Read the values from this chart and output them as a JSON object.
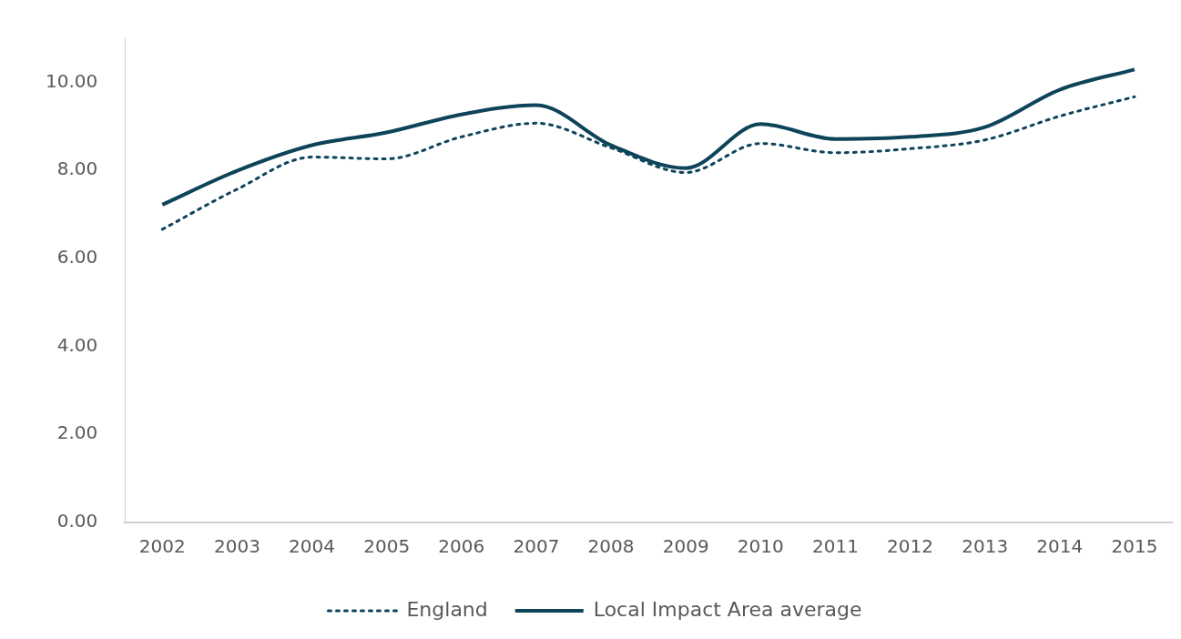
{
  "chart_data": {
    "type": "line",
    "categories": [
      "2002",
      "2003",
      "2004",
      "2005",
      "2006",
      "2007",
      "2008",
      "2009",
      "2010",
      "2011",
      "2012",
      "2013",
      "2014",
      "2015"
    ],
    "series": [
      {
        "name": "England",
        "color": "#0d4459",
        "line_style": "dotted",
        "values": [
          6.66,
          7.57,
          8.3,
          8.26,
          8.76,
          9.07,
          8.51,
          7.95,
          8.61,
          8.4,
          8.49,
          8.69,
          9.23,
          9.67
        ]
      },
      {
        "name": "Local Impact Area average",
        "color": "#0d4459",
        "line_style": "solid",
        "values": [
          7.22,
          7.99,
          8.57,
          8.86,
          9.27,
          9.48,
          8.57,
          8.05,
          9.05,
          8.71,
          8.76,
          8.98,
          9.83,
          10.29
        ]
      }
    ],
    "ylim": [
      0,
      11
    ],
    "yticks": [
      {
        "value": 0,
        "label": "0.00"
      },
      {
        "value": 2,
        "label": "2.00"
      },
      {
        "value": 4,
        "label": "4.00"
      },
      {
        "value": 6,
        "label": "6.00"
      },
      {
        "value": 8,
        "label": "8.00"
      },
      {
        "value": 10,
        "label": "10.00"
      }
    ],
    "grid": false,
    "legend": "bottom",
    "marker": "none"
  }
}
